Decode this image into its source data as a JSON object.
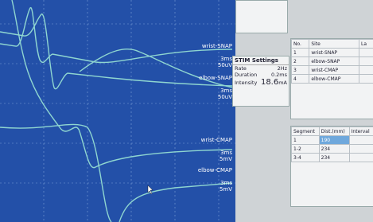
{
  "traces": [
    {
      "label": "wrist-SNAP",
      "time": "3ms",
      "gain": "50uV"
    },
    {
      "label": "elbow-SNAP",
      "time": "3ms",
      "gain": "50uV"
    },
    {
      "label": "wrist-CMAP",
      "time": "3ms",
      "gain": "5mV"
    },
    {
      "label": "elbow-CMAP",
      "time": "3ms",
      "gain": "5mV"
    }
  ],
  "stim": {
    "title": "STIM Settings",
    "rows": [
      [
        "Rate",
        "2Hz"
      ],
      [
        "Duration",
        "0.2ms"
      ]
    ],
    "intensity_label": "Intensity",
    "intensity_value": "18.6",
    "intensity_unit": "mA"
  },
  "sites": {
    "headers": [
      "No.",
      "Site",
      "La"
    ],
    "rows": [
      [
        "1",
        "wrist-SNAP"
      ],
      [
        "2",
        "elbow-SNAP"
      ],
      [
        "3",
        "wrist-CMAP"
      ],
      [
        "4",
        "elbow-CMAP"
      ]
    ]
  },
  "segments": {
    "headers": [
      "Segment",
      "Dist.(mm)",
      "Interval"
    ],
    "rows": [
      [
        "1",
        "190"
      ],
      [
        "1-2",
        "234"
      ],
      [
        "3-4",
        "234"
      ]
    ]
  }
}
